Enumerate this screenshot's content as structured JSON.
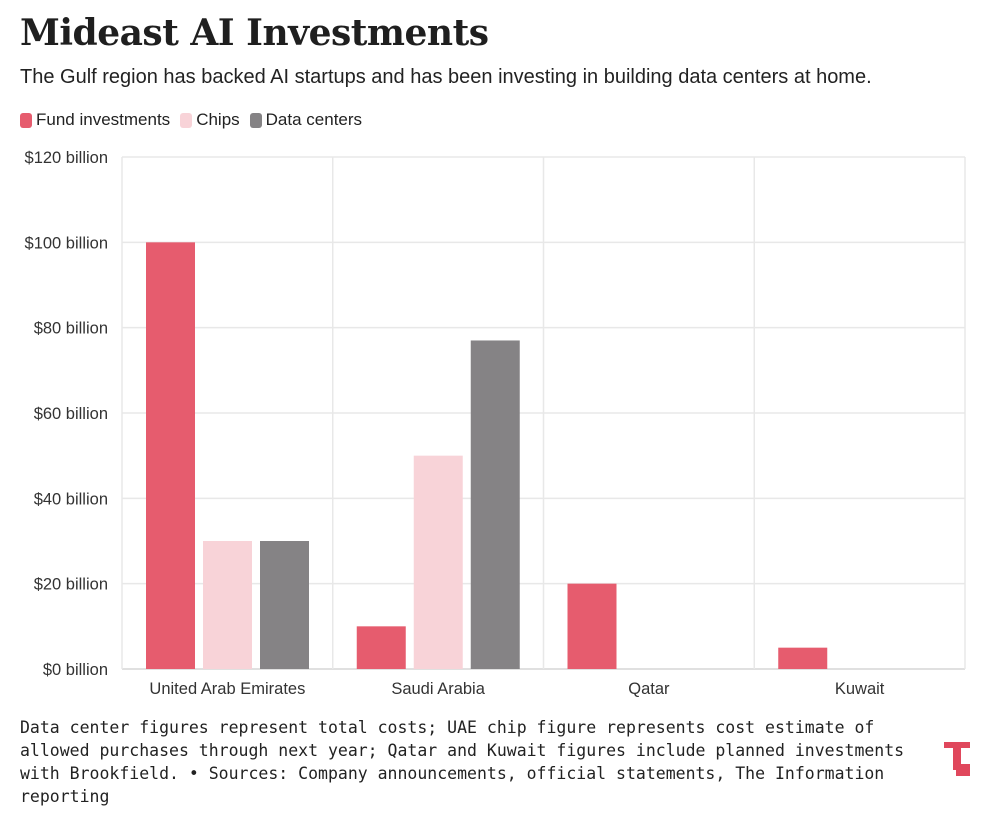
{
  "title": "Mideast AI Investments",
  "subtitle": "The Gulf region has backed AI startups and has been investing in building data centers at home.",
  "footnote": "Data center figures represent total costs; UAE chip figure represents cost estimate of allowed purchases through next year; Qatar and Kuwait figures include planned investments with Brookfield. • Sources: Company announcements, official statements, The Information reporting",
  "colors": {
    "fund": "#e65c6e",
    "chips": "#f8d3d8",
    "data_centers": "#858385",
    "logo": "#e0475c"
  },
  "logo_icon": "the-information-logo-icon",
  "chart_data": {
    "type": "bar",
    "title": "Mideast AI Investments",
    "categories": [
      "United Arab Emirates",
      "Saudi Arabia",
      "Qatar",
      "Kuwait"
    ],
    "series": [
      {
        "name": "Fund investments",
        "color": "#e65c6e",
        "values": [
          100,
          10,
          20,
          5
        ]
      },
      {
        "name": "Chips",
        "color": "#f8d3d8",
        "values": [
          30,
          50,
          null,
          null
        ]
      },
      {
        "name": "Data centers",
        "color": "#858385",
        "values": [
          30,
          77,
          null,
          null
        ]
      }
    ],
    "ylim": [
      0,
      120
    ],
    "yticks": [
      0,
      20,
      40,
      60,
      80,
      100,
      120
    ],
    "ytick_labels": [
      "$0 billion",
      "$20 billion",
      "$40 billion",
      "$60 billion",
      "$80 billion",
      "$100 billion",
      "$120 billion"
    ],
    "unit": "billion USD",
    "legend": "top-left",
    "grid": true
  }
}
